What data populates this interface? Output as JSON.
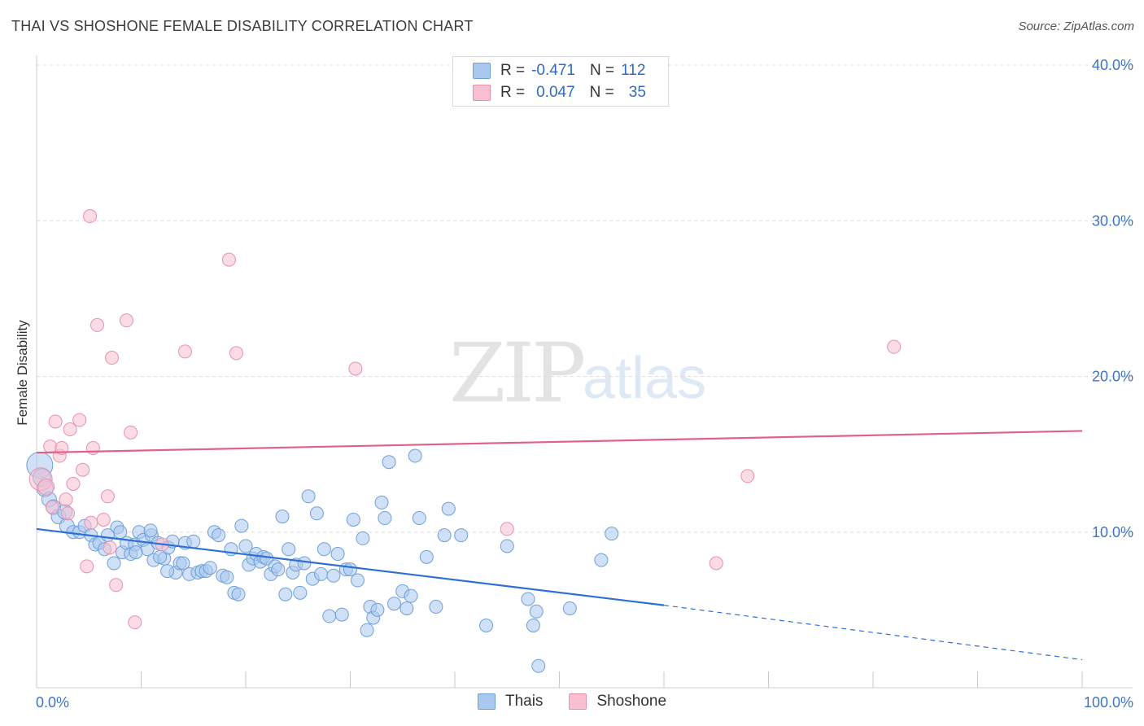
{
  "title": "THAI VS SHOSHONE FEMALE DISABILITY CORRELATION CHART",
  "source": "Source: ZipAtlas.com",
  "watermark": {
    "zip": "ZIP",
    "atlas": "atlas"
  },
  "legend": {
    "rows": [
      {
        "r_label": "R =",
        "r_value": "-0.471",
        "n_label": "N =",
        "n_value": "112",
        "color": "#a9c8f0",
        "stroke": "#6e9fd8"
      },
      {
        "r_label": "R =",
        "r_value": "0.047",
        "n_label": "N =",
        "n_value": "35",
        "color": "#f7bfd0",
        "stroke": "#e890ac"
      }
    ]
  },
  "bottom_legend": [
    {
      "label": "Thais",
      "color": "#a9c8f0",
      "stroke": "#6e9fd8"
    },
    {
      "label": "Shoshone",
      "color": "#f7bfd0",
      "stroke": "#e890ac"
    }
  ],
  "chart_data": {
    "type": "scatter",
    "title": "THAI VS SHOSHONE FEMALE DISABILITY CORRELATION CHART",
    "xlabel": "",
    "ylabel": "Female Disability",
    "xlim": [
      0,
      100
    ],
    "ylim": [
      0,
      40
    ],
    "x_tick_labels": [
      "0.0%",
      "100.0%"
    ],
    "y_ticks": [
      10,
      20,
      30,
      40
    ],
    "y_tick_labels": [
      "10.0%",
      "20.0%",
      "30.0%",
      "40.0%"
    ],
    "grid": "horizontal dashed",
    "legend_placement": "top-center and bottom",
    "series": [
      {
        "name": "Thais",
        "color": "#6e9fd8",
        "fill": "#a9c8f0",
        "trend": {
          "x": [
            0,
            60
          ],
          "y": [
            10.2,
            5.3
          ],
          "dashed_to": [
            100,
            1.8
          ],
          "color": "#2d6fd4"
        },
        "points": [
          [
            0.3,
            14.3,
            16
          ],
          [
            0.5,
            13.5,
            11
          ],
          [
            0.8,
            12.8,
            10
          ],
          [
            1.2,
            12.1,
            9
          ],
          [
            1.6,
            11.6,
            9
          ],
          [
            2.1,
            11.0,
            9
          ],
          [
            2.7,
            11.3,
            9
          ],
          [
            2.9,
            10.4,
            9
          ],
          [
            3.5,
            10.0,
            8
          ],
          [
            4.1,
            10.0,
            8
          ],
          [
            4.6,
            10.4,
            8
          ],
          [
            5.2,
            9.8,
            8
          ],
          [
            5.6,
            9.2,
            8
          ],
          [
            6.0,
            9.3,
            8
          ],
          [
            6.5,
            8.9,
            8
          ],
          [
            7.4,
            8.0,
            8
          ],
          [
            7.7,
            10.3,
            8
          ],
          [
            8.2,
            8.7,
            8
          ],
          [
            8.6,
            9.3,
            8
          ],
          [
            9.0,
            8.6,
            8
          ],
          [
            9.4,
            9.2,
            8
          ],
          [
            9.8,
            10.0,
            8
          ],
          [
            10.2,
            9.5,
            8
          ],
          [
            10.6,
            8.9,
            8
          ],
          [
            11.0,
            9.8,
            8
          ],
          [
            11.2,
            8.2,
            8
          ],
          [
            11.6,
            9.3,
            8
          ],
          [
            12.2,
            8.3,
            8
          ],
          [
            12.6,
            9.0,
            8
          ],
          [
            13.0,
            9.4,
            8
          ],
          [
            13.3,
            7.4,
            8
          ],
          [
            13.7,
            8.0,
            8
          ],
          [
            14.2,
            9.3,
            8
          ],
          [
            14.6,
            7.3,
            8
          ],
          [
            15.0,
            9.4,
            8
          ],
          [
            15.4,
            7.4,
            8
          ],
          [
            15.8,
            7.5,
            8
          ],
          [
            16.2,
            7.5,
            8
          ],
          [
            16.6,
            7.7,
            8
          ],
          [
            17.0,
            10.0,
            8
          ],
          [
            17.4,
            9.8,
            8
          ],
          [
            17.8,
            7.2,
            8
          ],
          [
            18.2,
            7.1,
            8
          ],
          [
            18.6,
            8.9,
            8
          ],
          [
            18.9,
            6.1,
            8
          ],
          [
            19.3,
            6.0,
            8
          ],
          [
            19.6,
            10.4,
            8
          ],
          [
            20.0,
            9.1,
            8
          ],
          [
            20.3,
            7.9,
            8
          ],
          [
            20.7,
            8.3,
            8
          ],
          [
            21.0,
            8.6,
            8
          ],
          [
            21.4,
            8.1,
            8
          ],
          [
            21.7,
            8.4,
            8
          ],
          [
            22.0,
            8.3,
            8
          ],
          [
            22.4,
            7.3,
            8
          ],
          [
            22.8,
            7.8,
            8
          ],
          [
            23.1,
            7.6,
            8
          ],
          [
            23.5,
            11.0,
            8
          ],
          [
            23.8,
            6.0,
            8
          ],
          [
            24.1,
            8.9,
            8
          ],
          [
            24.5,
            7.4,
            8
          ],
          [
            24.8,
            7.9,
            8
          ],
          [
            25.2,
            6.1,
            8
          ],
          [
            25.6,
            8.0,
            8
          ],
          [
            26.0,
            12.3,
            8
          ],
          [
            26.4,
            7.0,
            8
          ],
          [
            26.8,
            11.2,
            8
          ],
          [
            27.2,
            7.3,
            8
          ],
          [
            27.5,
            8.9,
            8
          ],
          [
            28.0,
            4.6,
            8
          ],
          [
            28.4,
            7.2,
            8
          ],
          [
            28.8,
            8.6,
            8
          ],
          [
            29.2,
            4.7,
            8
          ],
          [
            29.6,
            7.6,
            8
          ],
          [
            30.0,
            7.6,
            8
          ],
          [
            30.3,
            10.8,
            8
          ],
          [
            30.7,
            6.9,
            8
          ],
          [
            31.2,
            9.6,
            8
          ],
          [
            31.6,
            3.7,
            8
          ],
          [
            31.9,
            5.2,
            8
          ],
          [
            32.2,
            4.5,
            8
          ],
          [
            32.6,
            5.0,
            8
          ],
          [
            33.0,
            11.9,
            8
          ],
          [
            33.3,
            10.9,
            8
          ],
          [
            33.7,
            14.5,
            8
          ],
          [
            34.2,
            5.4,
            8
          ],
          [
            35.0,
            6.2,
            8
          ],
          [
            35.4,
            5.1,
            8
          ],
          [
            35.8,
            5.9,
            8
          ],
          [
            36.2,
            14.9,
            8
          ],
          [
            36.6,
            10.9,
            8
          ],
          [
            37.3,
            8.4,
            8
          ],
          [
            38.2,
            5.2,
            8
          ],
          [
            39.0,
            9.8,
            8
          ],
          [
            39.4,
            11.5,
            8
          ],
          [
            40.6,
            9.8,
            8
          ],
          [
            43.0,
            4.0,
            8
          ],
          [
            45.0,
            9.1,
            8
          ],
          [
            47.0,
            5.7,
            8
          ],
          [
            47.5,
            4.0,
            8
          ],
          [
            47.8,
            4.9,
            8
          ],
          [
            48.0,
            1.4,
            8
          ],
          [
            51.0,
            5.1,
            8
          ],
          [
            54.0,
            8.2,
            8
          ],
          [
            55.0,
            9.9,
            8
          ],
          [
            12.5,
            7.5,
            8
          ],
          [
            14.0,
            8.0,
            8
          ],
          [
            8.0,
            10.0,
            8
          ],
          [
            6.8,
            9.8,
            8
          ],
          [
            10.9,
            10.1,
            8
          ],
          [
            11.8,
            8.4,
            8
          ],
          [
            9.5,
            8.7,
            8
          ]
        ]
      },
      {
        "name": "Shoshone",
        "color": "#e890ac",
        "fill": "#f7bfd0",
        "trend": {
          "x": [
            0,
            100
          ],
          "y": [
            15.1,
            16.5
          ],
          "color": "#e0608a"
        },
        "points": [
          [
            0.4,
            13.4,
            14
          ],
          [
            0.9,
            12.9,
            10
          ],
          [
            1.3,
            15.5,
            8
          ],
          [
            1.8,
            17.1,
            8
          ],
          [
            2.2,
            14.9,
            8
          ],
          [
            2.4,
            15.4,
            8
          ],
          [
            2.8,
            12.1,
            8
          ],
          [
            3.2,
            16.6,
            8
          ],
          [
            3.5,
            13.1,
            8
          ],
          [
            4.1,
            17.2,
            8
          ],
          [
            4.4,
            14.0,
            8
          ],
          [
            4.8,
            7.8,
            8
          ],
          [
            5.2,
            10.6,
            8
          ],
          [
            5.1,
            30.3,
            8
          ],
          [
            5.4,
            15.4,
            8
          ],
          [
            5.8,
            23.3,
            8
          ],
          [
            6.4,
            10.8,
            8
          ],
          [
            6.8,
            12.3,
            8
          ],
          [
            7.2,
            21.2,
            8
          ],
          [
            7.6,
            6.6,
            8
          ],
          [
            8.6,
            23.6,
            8
          ],
          [
            9.0,
            16.4,
            8
          ],
          [
            9.4,
            4.2,
            8
          ],
          [
            12.0,
            9.2,
            8
          ],
          [
            14.2,
            21.6,
            8
          ],
          [
            18.4,
            27.5,
            8
          ],
          [
            19.1,
            21.5,
            8
          ],
          [
            30.5,
            20.5,
            8
          ],
          [
            45.0,
            10.2,
            8
          ],
          [
            65.0,
            8.0,
            8
          ],
          [
            68.0,
            13.6,
            8
          ],
          [
            82.0,
            21.9,
            8
          ],
          [
            7.0,
            9.0,
            8
          ],
          [
            3.0,
            11.2,
            8
          ],
          [
            1.5,
            11.6,
            8
          ]
        ]
      }
    ]
  }
}
